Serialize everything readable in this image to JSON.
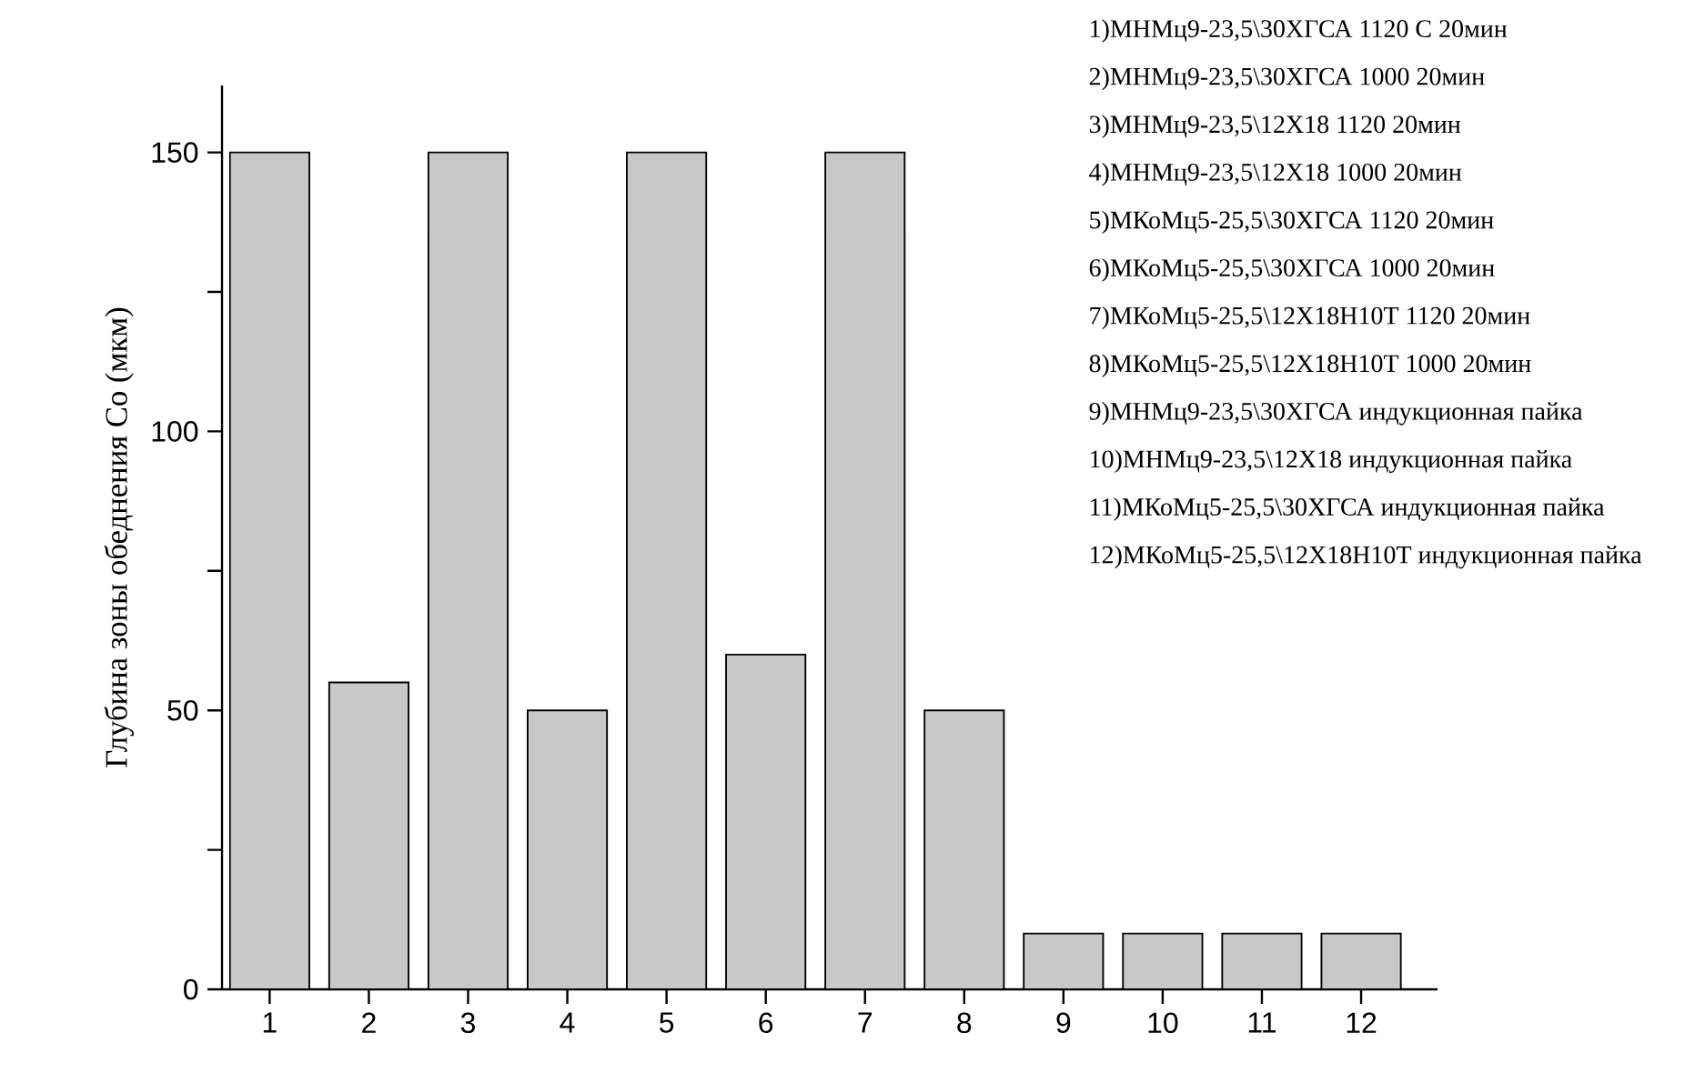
{
  "chart_data": {
    "type": "bar",
    "ylabel": "Глубина зоны обеднения Co (мкм)",
    "categories": [
      "1",
      "2",
      "3",
      "4",
      "5",
      "6",
      "7",
      "8",
      "9",
      "10",
      "11",
      "12"
    ],
    "values": [
      150,
      55,
      150,
      50,
      150,
      60,
      150,
      50,
      10,
      10,
      10,
      10
    ],
    "color": "#c8c8c8",
    "ylim": [
      0,
      162
    ],
    "yticks": [
      0,
      {
        "value": 25,
        "label": null
      },
      50,
      {
        "value": 75,
        "label": null
      },
      100,
      {
        "value": 125,
        "label": null
      },
      150
    ],
    "grid": false,
    "annotations": [
      "1)МНМц9-23,5\\30ХГСА 1120 С 20мин",
      "2)МНМц9-23,5\\30ХГСА 1000 20мин",
      "3)МНМц9-23,5\\12Х18 1120 20мин",
      "4)МНМц9-23,5\\12Х18 1000 20мин",
      "5)МКоМц5-25,5\\30ХГСА 1120 20мин",
      "6)МКоМц5-25,5\\30ХГСА 1000 20мин",
      "7)МКоМц5-25,5\\12Х18Н10Т 1120 20мин",
      "8)МКоМц5-25,5\\12Х18Н10Т 1000 20мин",
      "9)МНМц9-23,5\\30ХГСА индукционная пайка",
      "10)МНМц9-23,5\\12Х18  индукционная пайка",
      "11)МКоМц5-25,5\\30ХГСА индукционная пайка",
      "12)МКоМц5-25,5\\12Х18Н10Т индукционная пайка"
    ]
  }
}
